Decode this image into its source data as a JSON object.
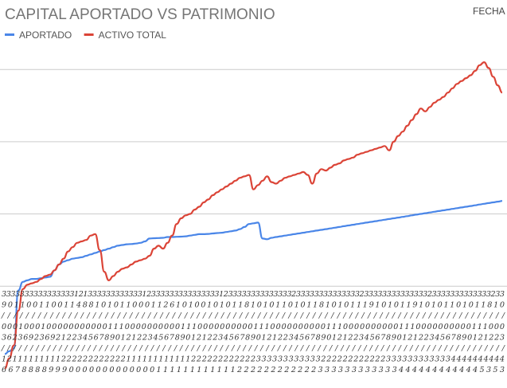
{
  "chart_data": {
    "type": "line",
    "title": "CAPITAL APORTADO VS PATRIMONIO",
    "corner_label": "FECHA",
    "legend_position": "top-left",
    "grid": true,
    "y_gridlines": 3,
    "x_tick_rows": [
      "333333333333333312133333333333312333333333333333123333333333333323333333333333323333333333333323333333333333233",
      "901100110011488101011000112610100101011810101101011810101119101011910101101011810",
      "///////////////////////////////////////////////////////////////////////////////////",
      "000100010000000000011100000000001110000000000111000000000011100000000001110000000000111000",
      "362369236921223456789012122345678901212234567890121223456789012122345678901212234567890121223",
      "////////////////////////////////////////////////////////////////////////////////////////",
      "121111111112222222222221111111111112222222222223333333333332222222222223333333333334444444444",
      "667888899900000000000001111111111112222222222223333333333334444444444445353"
    ],
    "series": [
      {
        "name": "APORTADO",
        "color": "#4a86e8",
        "values": [
          [
            0,
            -4.2
          ],
          [
            1,
            -4.0
          ],
          [
            2,
            -3.8
          ],
          [
            3,
            0.2
          ],
          [
            4,
            0.8
          ],
          [
            5,
            0.9
          ],
          [
            6,
            1.0
          ],
          [
            7,
            1.0
          ],
          [
            8,
            1.05
          ],
          [
            9,
            1.1
          ],
          [
            10,
            1.15
          ],
          [
            11,
            1.6
          ],
          [
            12,
            2.0
          ],
          [
            13,
            2.2
          ],
          [
            14,
            2.3
          ],
          [
            15,
            2.4
          ],
          [
            16,
            2.45
          ],
          [
            17,
            2.5
          ],
          [
            18,
            2.6
          ],
          [
            19,
            2.7
          ],
          [
            20,
            2.8
          ],
          [
            21,
            2.9
          ],
          [
            22,
            3.0
          ],
          [
            23,
            3.1
          ],
          [
            24,
            3.2
          ],
          [
            25,
            3.3
          ],
          [
            26,
            3.35
          ],
          [
            27,
            3.4
          ],
          [
            28,
            3.42
          ],
          [
            29,
            3.45
          ],
          [
            30,
            3.5
          ],
          [
            31,
            3.6
          ],
          [
            32,
            3.8
          ],
          [
            33,
            3.82
          ],
          [
            34,
            3.83
          ],
          [
            35,
            3.85
          ],
          [
            36,
            3.9
          ],
          [
            37,
            3.9
          ],
          [
            38,
            3.92
          ],
          [
            39,
            3.93
          ],
          [
            40,
            3.95
          ],
          [
            41,
            4.0
          ],
          [
            42,
            4.05
          ],
          [
            43,
            4.1
          ],
          [
            44,
            4.1
          ],
          [
            45,
            4.12
          ],
          [
            46,
            4.15
          ],
          [
            47,
            4.18
          ],
          [
            48,
            4.2
          ],
          [
            49,
            4.25
          ],
          [
            50,
            4.3
          ],
          [
            51,
            4.35
          ],
          [
            52,
            4.45
          ],
          [
            53,
            4.6
          ],
          [
            54,
            4.8
          ],
          [
            55,
            4.85
          ],
          [
            56,
            4.9
          ],
          [
            57,
            3.8
          ],
          [
            58,
            3.75
          ],
          [
            59,
            3.85
          ],
          [
            60,
            3.9
          ],
          [
            61,
            3.95
          ],
          [
            62,
            4.0
          ],
          [
            63,
            4.05
          ],
          [
            64,
            4.1
          ],
          [
            65,
            4.15
          ],
          [
            66,
            4.2
          ],
          [
            67,
            4.25
          ],
          [
            68,
            4.3
          ],
          [
            69,
            4.35
          ],
          [
            70,
            4.4
          ],
          [
            71,
            4.45
          ],
          [
            72,
            4.5
          ],
          [
            73,
            4.55
          ],
          [
            74,
            4.6
          ],
          [
            75,
            4.65
          ],
          [
            76,
            4.7
          ],
          [
            77,
            4.75
          ],
          [
            78,
            4.8
          ],
          [
            79,
            4.85
          ],
          [
            80,
            4.9
          ],
          [
            81,
            4.95
          ],
          [
            82,
            5.0
          ],
          [
            83,
            5.05
          ],
          [
            84,
            5.1
          ],
          [
            85,
            5.15
          ],
          [
            86,
            5.2
          ],
          [
            87,
            5.25
          ],
          [
            88,
            5.3
          ],
          [
            89,
            5.35
          ],
          [
            90,
            5.4
          ],
          [
            91,
            5.45
          ],
          [
            92,
            5.5
          ],
          [
            93,
            5.55
          ],
          [
            94,
            5.6
          ],
          [
            95,
            5.65
          ],
          [
            96,
            5.7
          ],
          [
            97,
            5.75
          ],
          [
            98,
            5.8
          ],
          [
            99,
            5.85
          ],
          [
            100,
            5.9
          ],
          [
            101,
            5.95
          ],
          [
            102,
            6.0
          ],
          [
            103,
            6.05
          ],
          [
            104,
            6.1
          ],
          [
            105,
            6.15
          ],
          [
            106,
            6.2
          ],
          [
            107,
            6.25
          ],
          [
            108,
            6.3
          ],
          [
            109,
            6.35
          ],
          [
            110,
            6.4
          ]
        ]
      },
      {
        "name": "ACTIVO TOTAL",
        "color": "#db4437",
        "values": [
          [
            0,
            -5.2
          ],
          [
            1,
            -4.5
          ],
          [
            2,
            -3.6
          ],
          [
            3,
            -1.2
          ],
          [
            4,
            0.3
          ],
          [
            5,
            0.6
          ],
          [
            6,
            0.7
          ],
          [
            7,
            0.8
          ],
          [
            8,
            1.0
          ],
          [
            9,
            1.2
          ],
          [
            10,
            1.3
          ],
          [
            11,
            1.6
          ],
          [
            12,
            2.0
          ],
          [
            13,
            2.4
          ],
          [
            14,
            2.9
          ],
          [
            15,
            3.2
          ],
          [
            16,
            3.5
          ],
          [
            17,
            3.6
          ],
          [
            18,
            3.7
          ],
          [
            19,
            4.0
          ],
          [
            20,
            4.1
          ],
          [
            21,
            3.0
          ],
          [
            22,
            1.5
          ],
          [
            23,
            0.9
          ],
          [
            24,
            1.2
          ],
          [
            25,
            1.5
          ],
          [
            26,
            1.7
          ],
          [
            27,
            1.8
          ],
          [
            28,
            2.0
          ],
          [
            29,
            2.2
          ],
          [
            30,
            2.3
          ],
          [
            31,
            2.4
          ],
          [
            32,
            2.6
          ],
          [
            33,
            3.1
          ],
          [
            34,
            3.3
          ],
          [
            35,
            3.1
          ],
          [
            36,
            3.5
          ],
          [
            37,
            4.0
          ],
          [
            38,
            4.8
          ],
          [
            39,
            5.2
          ],
          [
            40,
            5.4
          ],
          [
            41,
            5.5
          ],
          [
            42,
            5.8
          ],
          [
            43,
            6.0
          ],
          [
            44,
            6.3
          ],
          [
            45,
            6.5
          ],
          [
            46,
            6.8
          ],
          [
            47,
            7.0
          ],
          [
            48,
            7.2
          ],
          [
            49,
            7.4
          ],
          [
            50,
            7.6
          ],
          [
            51,
            7.8
          ],
          [
            52,
            8.0
          ],
          [
            53,
            8.1
          ],
          [
            54,
            8.2
          ],
          [
            55,
            7.2
          ],
          [
            56,
            7.5
          ],
          [
            57,
            7.8
          ],
          [
            58,
            8.1
          ],
          [
            59,
            7.7
          ],
          [
            60,
            7.6
          ],
          [
            61,
            7.8
          ],
          [
            62,
            8.0
          ],
          [
            63,
            8.1
          ],
          [
            64,
            8.2
          ],
          [
            65,
            8.3
          ],
          [
            66,
            8.4
          ],
          [
            67,
            8.2
          ],
          [
            68,
            7.6
          ],
          [
            69,
            8.3
          ],
          [
            70,
            8.6
          ],
          [
            71,
            8.5
          ],
          [
            72,
            8.7
          ],
          [
            73,
            8.9
          ],
          [
            74,
            9.0
          ],
          [
            75,
            9.2
          ],
          [
            76,
            9.3
          ],
          [
            77,
            9.4
          ],
          [
            78,
            9.6
          ],
          [
            79,
            9.7
          ],
          [
            80,
            9.8
          ],
          [
            81,
            9.9
          ],
          [
            82,
            10.0
          ],
          [
            83,
            10.1
          ],
          [
            84,
            10.2
          ],
          [
            85,
            9.9
          ],
          [
            86,
            10.5
          ],
          [
            87,
            10.9
          ],
          [
            88,
            11.2
          ],
          [
            89,
            11.6
          ],
          [
            90,
            12.0
          ],
          [
            91,
            12.4
          ],
          [
            92,
            12.8
          ],
          [
            93,
            12.6
          ],
          [
            94,
            12.9
          ],
          [
            95,
            13.2
          ],
          [
            96,
            13.4
          ],
          [
            97,
            13.6
          ],
          [
            98,
            13.9
          ],
          [
            99,
            14.2
          ],
          [
            100,
            14.5
          ],
          [
            101,
            14.7
          ],
          [
            102,
            14.9
          ],
          [
            103,
            15.1
          ],
          [
            104,
            15.4
          ],
          [
            105,
            15.8
          ],
          [
            106,
            16.0
          ],
          [
            107,
            15.6
          ],
          [
            108,
            15.0
          ],
          [
            109,
            14.4
          ],
          [
            110,
            13.9
          ]
        ]
      }
    ],
    "xlim": [
      0,
      110
    ],
    "ylim": [
      -5.5,
      17
    ]
  }
}
